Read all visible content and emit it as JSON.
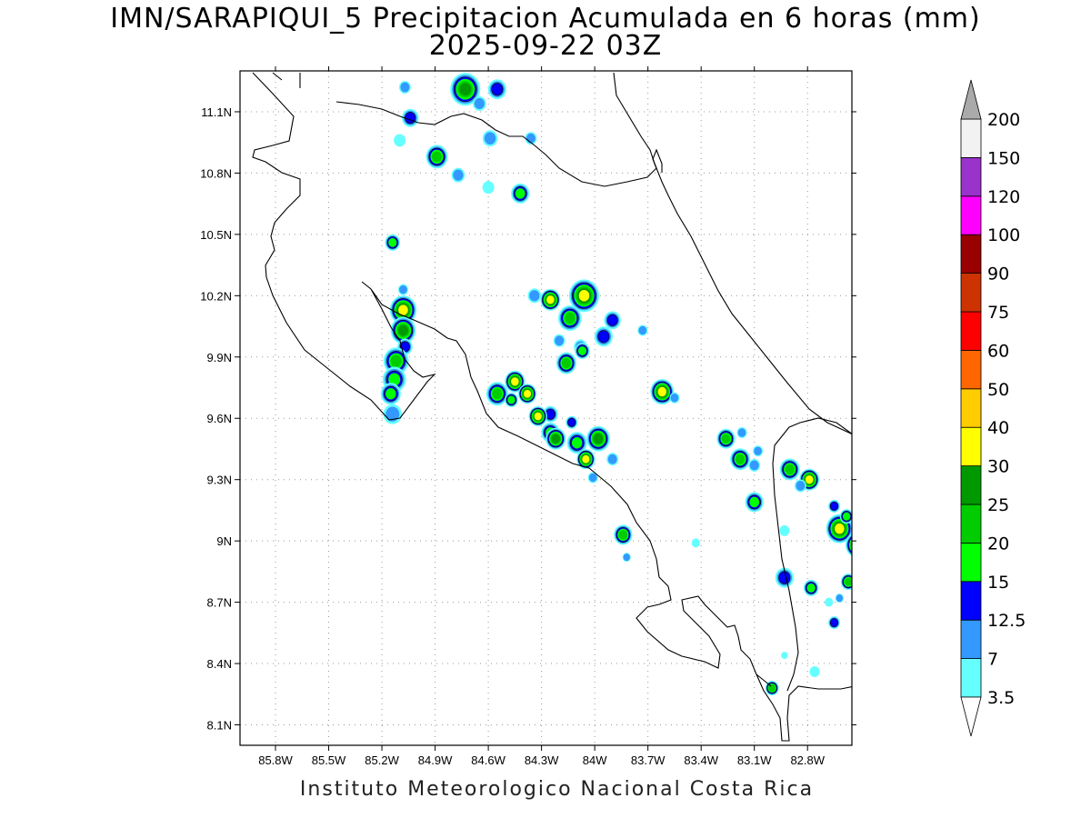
{
  "title": {
    "line1": "IMN/SARAPIQUI_5 Precipitacion Acumulada en 6 horas (mm)",
    "line2": "2025-09-22 03Z"
  },
  "footer": "Instituto Meteorologico Nacional Costa Rica",
  "map": {
    "lon_range": [
      -86.0,
      -82.55
    ],
    "lat_range": [
      8.0,
      11.3
    ],
    "x_ticks": [
      "85.8W",
      "85.5W",
      "85.2W",
      "84.9W",
      "84.6W",
      "84.3W",
      "84W",
      "83.7W",
      "83.4W",
      "83.1W",
      "82.8W"
    ],
    "y_ticks": [
      "11.1N",
      "10.8N",
      "10.5N",
      "10.2N",
      "9.9N",
      "9.6N",
      "9.3N",
      "9N",
      "8.7N",
      "8.4N",
      "8.1N"
    ],
    "gridlines": "dotted",
    "colorbar": {
      "levels": [
        "3.5",
        "7",
        "12.5",
        "15",
        "20",
        "25",
        "30",
        "40",
        "50",
        "60",
        "75",
        "90",
        "100",
        "120",
        "150",
        "200"
      ],
      "colors": [
        "#66ffff",
        "#3399ff",
        "#0000ff",
        "#00ff00",
        "#00cc00",
        "#009900",
        "#ffff00",
        "#ffcc00",
        "#ff6600",
        "#ff0000",
        "#cc3300",
        "#990000",
        "#ff00ff",
        "#9933cc",
        "#f2f2f2"
      ],
      "arrow_low": "#ffffff",
      "arrow_high": "#aaaaaa"
    }
  }
}
